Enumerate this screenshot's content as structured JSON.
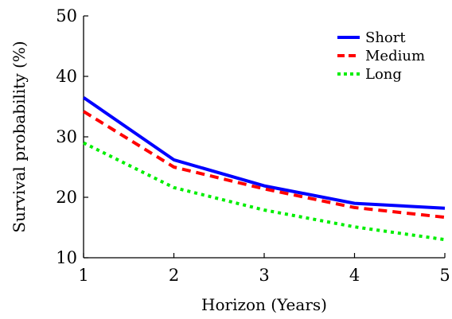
{
  "chart_data": {
    "type": "line",
    "title": "",
    "xlabel": "Horizon (Years)",
    "ylabel": "Survival probability (%)",
    "x": [
      1,
      2,
      3,
      4,
      5
    ],
    "xticks": [
      "1",
      "2",
      "3",
      "4",
      "5"
    ],
    "yticks": [
      "10",
      "20",
      "30",
      "40",
      "50"
    ],
    "xlim": [
      1,
      5
    ],
    "ylim": [
      10,
      50
    ],
    "grid": false,
    "legend_position": "top-right",
    "series": [
      {
        "name": "Short",
        "values": [
          36.5,
          26.2,
          21.9,
          19.0,
          18.2
        ],
        "color": "#0000ff",
        "style": "solid"
      },
      {
        "name": "Medium",
        "values": [
          34.2,
          25.0,
          21.4,
          18.3,
          16.7
        ],
        "color": "#ff0000",
        "style": "dashed"
      },
      {
        "name": "Long",
        "values": [
          29.0,
          21.6,
          17.9,
          15.1,
          13.0
        ],
        "color": "#00ee00",
        "style": "dotted"
      }
    ]
  }
}
